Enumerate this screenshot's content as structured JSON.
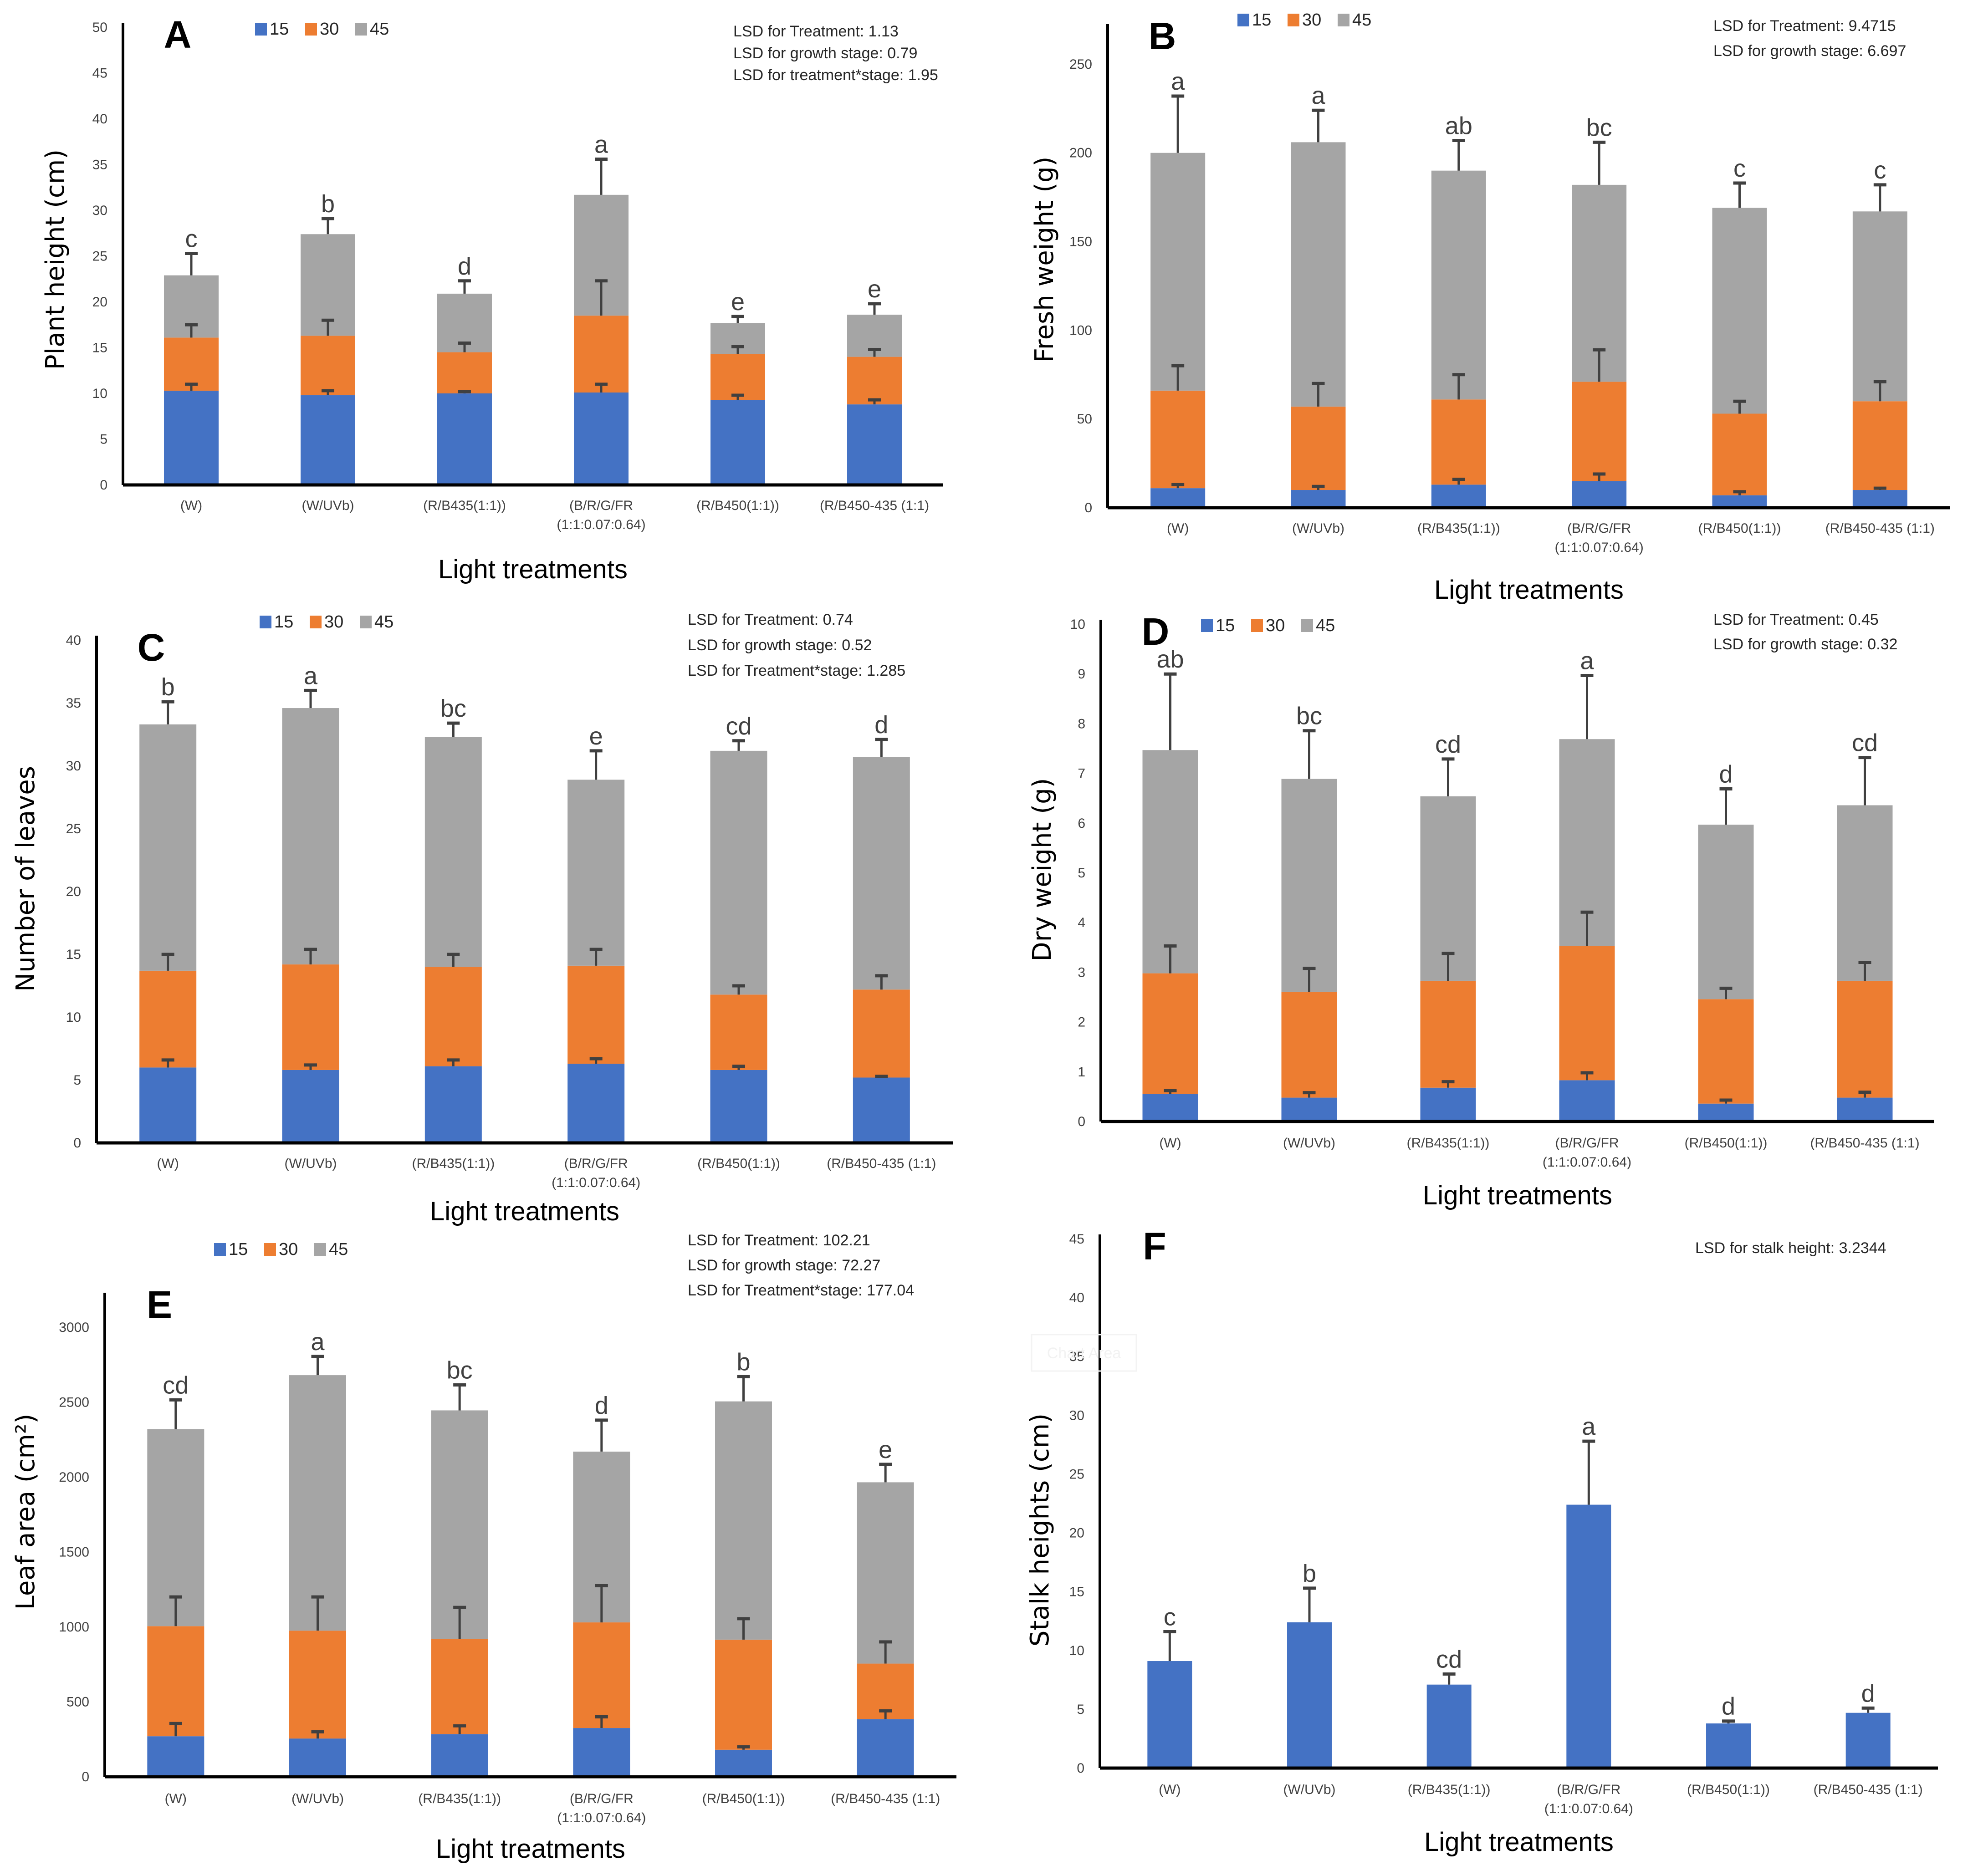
{
  "colors": {
    "stage_15": "#4472C4",
    "stage_30": "#ED7D31",
    "stage_45": "#A5A5A5",
    "axis": "#000000",
    "error_bar": "#404040"
  },
  "chart_data": [
    {
      "id": "A",
      "type": "bar",
      "stacked": true,
      "panel_label": "A",
      "title": "",
      "xlabel": "Light treatments",
      "ylabel": "Plant height (cm)",
      "ylim": [
        0,
        50
      ],
      "yticks": [
        0,
        5,
        10,
        15,
        20,
        25,
        30,
        35,
        40,
        45,
        50
      ],
      "categories": [
        "(W)",
        "(W/UVb)",
        "(R/B435(1:1))",
        "(B/R/G/FR\n(1:1:0.07:0.64)",
        "(R/B450(1:1))",
        "(R/B450-435 (1:1)"
      ],
      "legend": [
        "15",
        "30",
        "45"
      ],
      "legend_position": "top-left",
      "series": [
        {
          "name": "15",
          "values": [
            10.3,
            9.8,
            10.0,
            10.1,
            9.3,
            8.8
          ],
          "error_top": [
            11.0,
            10.3,
            10.2,
            11.0,
            9.8,
            9.3
          ]
        },
        {
          "name": "30",
          "values": [
            16.1,
            16.3,
            14.5,
            18.5,
            14.3,
            14.0
          ],
          "error_top": [
            17.5,
            18.0,
            15.5,
            22.3,
            15.1,
            14.8
          ]
        },
        {
          "name": "45",
          "values": [
            22.9,
            27.4,
            20.9,
            31.7,
            17.7,
            18.6
          ],
          "error_top": [
            25.3,
            29.1,
            22.3,
            35.6,
            18.4,
            19.8
          ]
        }
      ],
      "values_note": "values are cumulative stacked tops per growth stage (days)",
      "significance_letters": [
        "c",
        "b",
        "d",
        "a",
        "e",
        "e"
      ],
      "annotations": [
        "LSD for Treatment: 1.13",
        "LSD for growth stage: 0.79",
        "LSD for treatment*stage: 1.95"
      ]
    },
    {
      "id": "B",
      "type": "bar",
      "stacked": true,
      "panel_label": "B",
      "title": "",
      "xlabel": "Light treatments",
      "ylabel": "Fresh weight (g)",
      "ylim": [
        0,
        270
      ],
      "yticks": [
        0,
        50,
        100,
        150,
        200,
        250
      ],
      "categories": [
        "(W)",
        "(W/UVb)",
        "(R/B435(1:1))",
        "(B/R/G/FR\n(1:1:0.07:0.64)",
        "(R/B450(1:1))",
        "(R/B450-435 (1:1)"
      ],
      "legend": [
        "15",
        "30",
        "45"
      ],
      "legend_position": "top-left",
      "series": [
        {
          "name": "15",
          "values": [
            11,
            10,
            13,
            15,
            7,
            10
          ],
          "error_top": [
            13,
            12,
            16,
            19,
            9,
            11
          ]
        },
        {
          "name": "30",
          "values": [
            66,
            57,
            61,
            71,
            53,
            60
          ],
          "error_top": [
            80,
            70,
            75,
            89,
            60,
            71
          ]
        },
        {
          "name": "45",
          "values": [
            200,
            206,
            190,
            182,
            169,
            167
          ],
          "error_top": [
            232,
            224,
            207,
            206,
            183,
            182
          ]
        }
      ],
      "values_note": "values are cumulative stacked tops per growth stage (days)",
      "significance_letters": [
        "a",
        "a",
        "ab",
        "bc",
        "c",
        "c"
      ],
      "annotations": [
        "LSD for Treatment: 9.4715",
        "LSD for growth stage: 6.697"
      ]
    },
    {
      "id": "C",
      "type": "bar",
      "stacked": true,
      "panel_label": "C",
      "title": "",
      "xlabel": "Light treatments",
      "ylabel": "Number of leaves",
      "ylim": [
        0,
        40
      ],
      "yticks": [
        0,
        5,
        10,
        15,
        20,
        25,
        30,
        35,
        40
      ],
      "categories": [
        "(W)",
        "(W/UVb)",
        "(R/B435(1:1))",
        "(B/R/G/FR\n(1:1:0.07:0.64)",
        "(R/B450(1:1))",
        "(R/B450-435 (1:1)"
      ],
      "legend": [
        "15",
        "30",
        "45"
      ],
      "legend_position": "top-left",
      "series": [
        {
          "name": "15",
          "values": [
            6.0,
            5.8,
            6.1,
            6.3,
            5.8,
            5.2
          ],
          "error_top": [
            6.6,
            6.2,
            6.6,
            6.7,
            6.1,
            5.3
          ]
        },
        {
          "name": "30",
          "values": [
            13.7,
            14.2,
            14.0,
            14.1,
            11.8,
            12.2
          ],
          "error_top": [
            15.0,
            15.4,
            15.0,
            15.4,
            12.5,
            13.3
          ]
        },
        {
          "name": "45",
          "values": [
            33.3,
            34.6,
            32.3,
            28.9,
            31.2,
            30.7
          ],
          "error_top": [
            35.1,
            36.0,
            33.4,
            31.2,
            32.0,
            32.1
          ]
        }
      ],
      "values_note": "values are cumulative stacked tops per growth stage (days)",
      "significance_letters": [
        "b",
        "a",
        "bc",
        "e",
        "cd",
        "d"
      ],
      "annotations": [
        "LSD for Treatment: 0.74",
        "LSD for growth stage: 0.52",
        "LSD for Treatment*stage: 1.285"
      ]
    },
    {
      "id": "D",
      "type": "bar",
      "stacked": true,
      "panel_label": "D",
      "title": "",
      "xlabel": "Light treatments",
      "ylabel": "Dry weight (g)",
      "ylim": [
        0,
        10
      ],
      "yticks": [
        0,
        1,
        2,
        3,
        4,
        5,
        6,
        7,
        8,
        9,
        10
      ],
      "categories": [
        "(W)",
        "(W/UVb)",
        "(R/B435(1:1))",
        "(B/R/G/FR\n(1:1:0.07:0.64)",
        "(R/B450(1:1))",
        "(R/B450-435 (1:1)"
      ],
      "legend": [
        "15",
        "30",
        "45"
      ],
      "legend_position": "top-left",
      "series": [
        {
          "name": "15",
          "values": [
            0.55,
            0.48,
            0.68,
            0.83,
            0.36,
            0.48
          ],
          "error_top": [
            0.62,
            0.58,
            0.8,
            0.98,
            0.43,
            0.59
          ]
        },
        {
          "name": "30",
          "values": [
            2.98,
            2.61,
            2.83,
            3.53,
            2.46,
            2.83
          ],
          "error_top": [
            3.53,
            3.08,
            3.38,
            4.21,
            2.68,
            3.2
          ]
        },
        {
          "name": "45",
          "values": [
            7.47,
            6.89,
            6.54,
            7.69,
            5.97,
            6.36
          ],
          "error_top": [
            9.0,
            7.86,
            7.29,
            8.97,
            6.69,
            7.32
          ]
        }
      ],
      "values_note": "values are cumulative stacked tops per growth stage (days)",
      "significance_letters": [
        "ab",
        "bc",
        "cd",
        "a",
        "d",
        "cd"
      ],
      "annotations": [
        "LSD for Treatment: 0.45",
        "LSD for growth stage: 0.32"
      ]
    },
    {
      "id": "E",
      "type": "bar",
      "stacked": true,
      "panel_label": "E",
      "title": "",
      "xlabel": "Light treatments",
      "ylabel": "Leaf area (cm²)",
      "ylim": [
        0,
        3200
      ],
      "yticks": [
        0,
        500,
        1000,
        1500,
        2000,
        2500,
        3000
      ],
      "categories": [
        "(W)",
        "(W/UVb)",
        "(R/B435(1:1))",
        "(B/R/G/FR\n(1:1:0.07:0.64)",
        "(R/B450(1:1))",
        "(R/B450-435 (1:1)"
      ],
      "legend": [
        "15",
        "30",
        "45"
      ],
      "legend_position": "top-left",
      "series": [
        {
          "name": "15",
          "values": [
            270,
            255,
            285,
            325,
            180,
            385
          ],
          "error_top": [
            355,
            300,
            340,
            400,
            200,
            440
          ]
        },
        {
          "name": "30",
          "values": [
            1005,
            975,
            920,
            1030,
            915,
            755
          ],
          "error_top": [
            1200,
            1200,
            1130,
            1275,
            1055,
            900
          ]
        },
        {
          "name": "45",
          "values": [
            2320,
            2680,
            2445,
            2170,
            2505,
            1965
          ],
          "error_top": [
            2515,
            2805,
            2615,
            2380,
            2670,
            2085
          ]
        }
      ],
      "values_note": "values are cumulative stacked tops per growth stage (days)",
      "significance_letters": [
        "cd",
        "a",
        "bc",
        "d",
        "b",
        "e"
      ],
      "annotations": [
        "LSD for Treatment: 102.21",
        "LSD for growth stage: 72.27",
        "LSD for Treatment*stage: 177.04"
      ]
    },
    {
      "id": "F",
      "type": "bar",
      "stacked": false,
      "panel_label": "F",
      "title": "",
      "xlabel": "Light treatments",
      "ylabel": "Stalk heights (cm)",
      "ylim": [
        0,
        45
      ],
      "yticks": [
        0,
        5,
        10,
        15,
        20,
        25,
        30,
        35,
        40,
        45
      ],
      "categories": [
        "(W)",
        "(W/UVb)",
        "(R/B435(1:1))",
        "(B/R/G/FR\n(1:1:0.07:0.64)",
        "(R/B450(1:1))",
        "(R/B450-435 (1:1)"
      ],
      "legend": [],
      "series": [
        {
          "name": "stalk height",
          "values": [
            9.1,
            12.4,
            7.1,
            22.4,
            3.8,
            4.7
          ],
          "error_top": [
            11.6,
            15.3,
            8.0,
            27.8,
            4.0,
            5.1
          ]
        }
      ],
      "significance_letters": [
        "c",
        "b",
        "cd",
        "a",
        "d",
        "d"
      ],
      "annotations": [
        "LSD for stalk height: 3.2344"
      ],
      "ghost_tooltip": "Chart Area"
    }
  ]
}
